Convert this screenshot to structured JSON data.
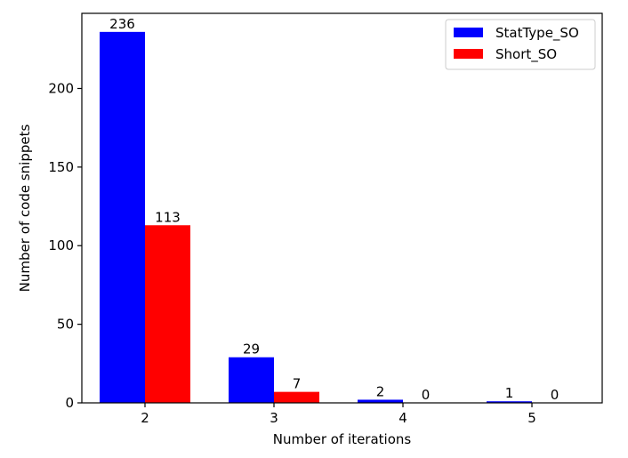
{
  "chart_data": {
    "type": "bar",
    "categories": [
      "2",
      "3",
      "4",
      "5"
    ],
    "series": [
      {
        "name": "StatType_SO",
        "values": [
          236,
          29,
          2,
          1
        ],
        "color": "#0000ff"
      },
      {
        "name": "Short_SO",
        "values": [
          113,
          7,
          0,
          0
        ],
        "color": "#ff0000"
      }
    ],
    "title": "",
    "xlabel": "Number of iterations",
    "ylabel": "Number of code snippets",
    "ylim": [
      0,
      247.8
    ],
    "yticks": [
      0,
      50,
      100,
      150,
      200
    ],
    "grid": false,
    "legend": "top-right"
  }
}
